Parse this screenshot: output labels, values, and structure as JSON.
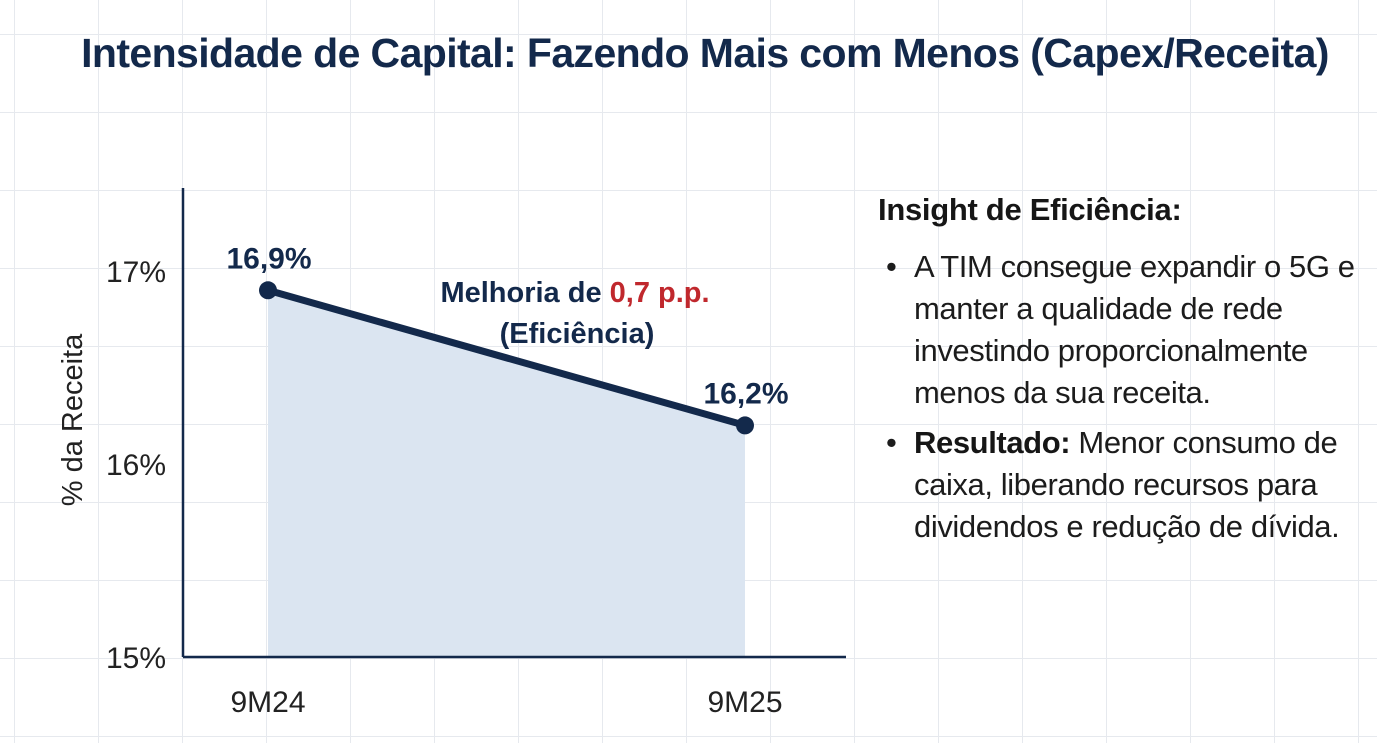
{
  "title": "Intensidade de Capital: Fazendo Mais com Menos (Capex/Receita)",
  "chart_data": {
    "type": "area",
    "categories": [
      "9M24",
      "9M25"
    ],
    "values": [
      16.9,
      16.2
    ],
    "data_labels": [
      "16,9%",
      "16,2%"
    ],
    "ylabel": "% da Receita",
    "ylim": [
      15,
      17.5
    ],
    "yticks": [
      15,
      16,
      17
    ],
    "ytick_labels": [
      "15%",
      "16%",
      "17%"
    ],
    "annotation": {
      "prefix": "Melhoria de ",
      "highlight": "0,7 p.p.",
      "suffix": "(Eficiência)"
    },
    "grid": true,
    "colors": {
      "line": "#13294b",
      "fill": "#dbe5f1",
      "highlight": "#c0282d"
    }
  },
  "insight": {
    "title": "Insight de Eficiência:",
    "bullets": [
      {
        "bold": "",
        "text": "A TIM consegue expandir o 5G e manter a qualidade de rede investindo proporcionalmente menos da sua receita."
      },
      {
        "bold": "Resultado:",
        "text": " Menor consumo de caixa, liberando recursos para dividendos e redução de dívida."
      }
    ],
    "bullet_symbol": "•"
  }
}
